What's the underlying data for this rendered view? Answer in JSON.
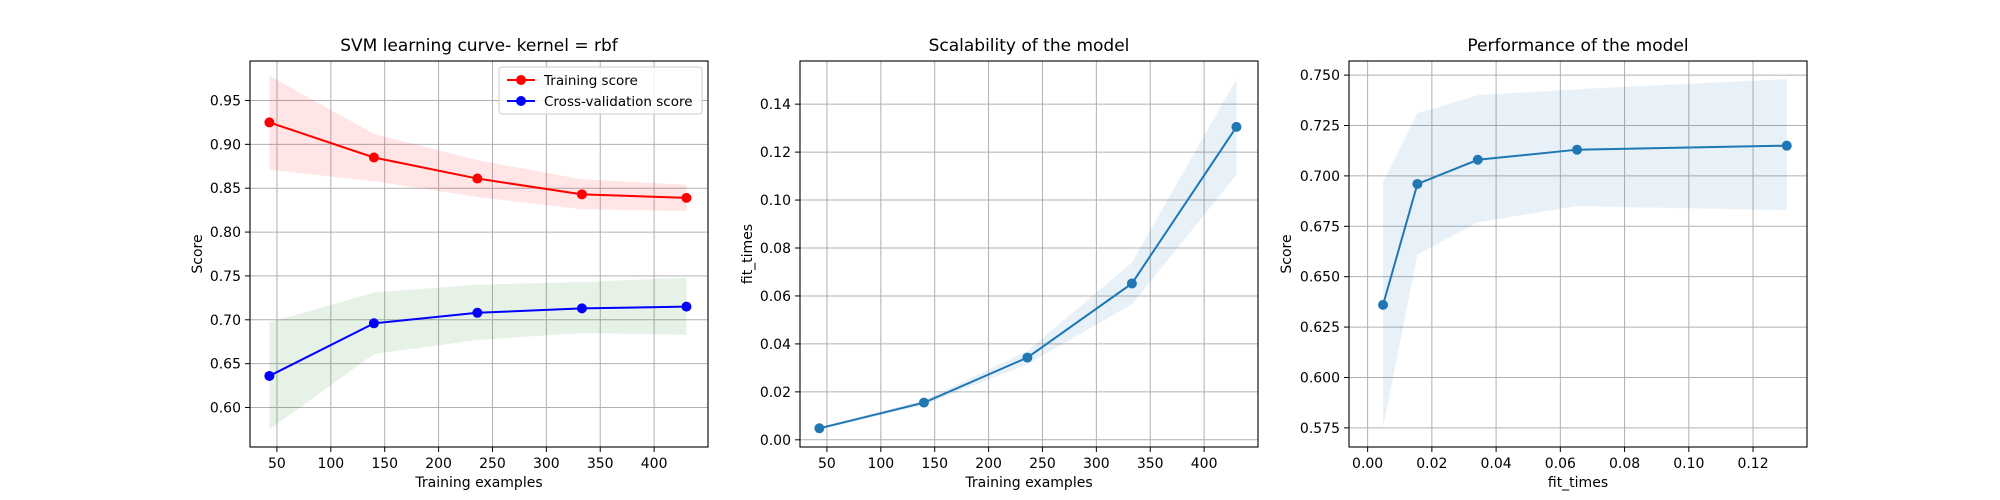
{
  "chart_data": [
    {
      "type": "line",
      "title": "SVM learning curve- kernel = rbf",
      "xlabel": "Training examples",
      "ylabel": "Score",
      "xlim": [
        25,
        450
      ],
      "ylim": [
        0.555,
        0.995
      ],
      "xticks": [
        "50",
        "100",
        "150",
        "200",
        "250",
        "300",
        "350",
        "400"
      ],
      "yticks": [
        "0.60",
        "0.65",
        "0.70",
        "0.75",
        "0.80",
        "0.85",
        "0.90",
        "0.95"
      ],
      "grid": true,
      "legend_position": "top-right",
      "x": [
        43,
        140,
        236,
        333,
        430
      ],
      "series": [
        {
          "name": "Training score",
          "color": "#ff0000",
          "values": [
            0.925,
            0.885,
            0.861,
            0.843,
            0.839
          ],
          "lower": [
            0.871,
            0.858,
            0.84,
            0.826,
            0.824
          ],
          "upper": [
            0.978,
            0.912,
            0.882,
            0.86,
            0.854
          ]
        },
        {
          "name": "Cross-validation score",
          "color": "#0000ff",
          "values": [
            0.636,
            0.696,
            0.708,
            0.713,
            0.715
          ],
          "lower": [
            0.575,
            0.661,
            0.677,
            0.685,
            0.683
          ],
          "upper": [
            0.697,
            0.731,
            0.74,
            0.743,
            0.748
          ]
        }
      ]
    },
    {
      "type": "line",
      "title": "Scalability of the model",
      "xlabel": "Training examples",
      "ylabel": "fit_times",
      "xlim": [
        25,
        450
      ],
      "ylim": [
        -0.003,
        0.158
      ],
      "xticks": [
        "50",
        "100",
        "150",
        "200",
        "250",
        "300",
        "350",
        "400"
      ],
      "yticks": [
        "0.00",
        "0.02",
        "0.04",
        "0.06",
        "0.08",
        "0.10",
        "0.12",
        "0.14"
      ],
      "grid": true,
      "x": [
        43,
        140,
        236,
        333,
        430
      ],
      "series": [
        {
          "color": "#1f77b4",
          "values": [
            0.0048,
            0.0155,
            0.0343,
            0.0652,
            0.1305
          ],
          "lower": [
            0.0042,
            0.0145,
            0.0315,
            0.0565,
            0.1105
          ],
          "upper": [
            0.0054,
            0.0165,
            0.0371,
            0.0739,
            0.1505
          ]
        }
      ]
    },
    {
      "type": "line",
      "title": "Performance of the model",
      "xlabel": "fit_times",
      "ylabel": "Score",
      "xlim": [
        -0.0058,
        0.1368
      ],
      "ylim": [
        0.5655,
        0.757
      ],
      "xticks": [
        "0.00",
        "0.02",
        "0.04",
        "0.06",
        "0.08",
        "0.10",
        "0.12"
      ],
      "yticks": [
        "0.575",
        "0.600",
        "0.625",
        "0.650",
        "0.675",
        "0.700",
        "0.725",
        "0.750"
      ],
      "grid": true,
      "x": [
        0.0048,
        0.0155,
        0.0343,
        0.0652,
        0.1305
      ],
      "series": [
        {
          "color": "#1f77b4",
          "values": [
            0.636,
            0.696,
            0.708,
            0.713,
            0.715
          ],
          "lower": [
            0.575,
            0.661,
            0.677,
            0.685,
            0.683
          ],
          "upper": [
            0.697,
            0.731,
            0.74,
            0.743,
            0.748
          ]
        }
      ]
    }
  ]
}
